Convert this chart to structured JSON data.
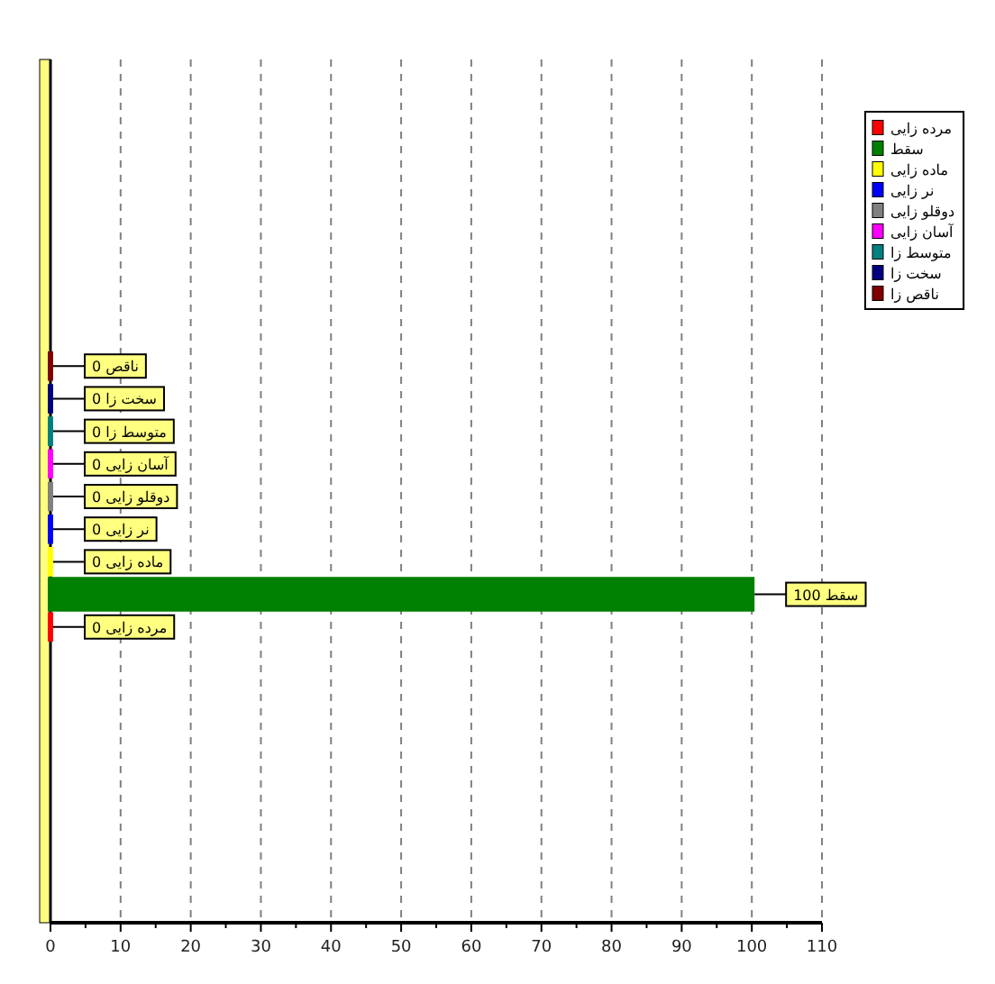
{
  "chart_data": {
    "type": "bar",
    "orientation": "horizontal",
    "categories": [
      null
    ],
    "series": [
      {
        "name": "مرده زایی",
        "color": "#ff0000",
        "values": [
          0
        ],
        "value_labels": [
          "مرده زایی 0"
        ]
      },
      {
        "name": "سقط",
        "color": "#008000",
        "values": [
          100
        ],
        "value_labels": [
          "سقط 100"
        ]
      },
      {
        "name": "ماده زایی",
        "color": "#ffff00",
        "values": [
          0
        ],
        "value_labels": [
          "ماده زایی 0"
        ]
      },
      {
        "name": "نر زایی",
        "color": "#0000ff",
        "values": [
          0
        ],
        "value_labels": [
          "نر زایی 0"
        ]
      },
      {
        "name": "دوقلو زایی",
        "color": "#808080",
        "values": [
          0
        ],
        "value_labels": [
          "دوقلو زایی 0"
        ]
      },
      {
        "name": "آسان زایی",
        "color": "#ff00ff",
        "values": [
          0
        ],
        "value_labels": [
          "آسان زایی 0"
        ]
      },
      {
        "name": "متوسط زا",
        "color": "#008080",
        "values": [
          0
        ],
        "value_labels": [
          "متوسط زا 0"
        ]
      },
      {
        "name": "سخت زا",
        "color": "#000080",
        "values": [
          0
        ],
        "value_labels": [
          "سخت زا 0"
        ]
      },
      {
        "name": "ناقص زا",
        "color": "#800000",
        "values": [
          0
        ],
        "value_labels": [
          "ناقص 0"
        ]
      }
    ],
    "xlim": [
      0,
      110
    ],
    "xticks": [
      0,
      {
        "value": 5,
        "label": null
      },
      10,
      {
        "value": 15,
        "label": null
      },
      20,
      {
        "value": 25,
        "label": null
      },
      30,
      {
        "value": 35,
        "label": null
      },
      40,
      {
        "value": 45,
        "label": null
      },
      50,
      {
        "value": 55,
        "label": null
      },
      60,
      {
        "value": 65,
        "label": null
      },
      70,
      {
        "value": 75,
        "label": null
      },
      80,
      {
        "value": 85,
        "label": null
      },
      90,
      {
        "value": 95,
        "label": null
      },
      100,
      {
        "value": 105,
        "label": null
      },
      110
    ],
    "grid": "x",
    "legend": "top right",
    "tick_labels": "x"
  }
}
